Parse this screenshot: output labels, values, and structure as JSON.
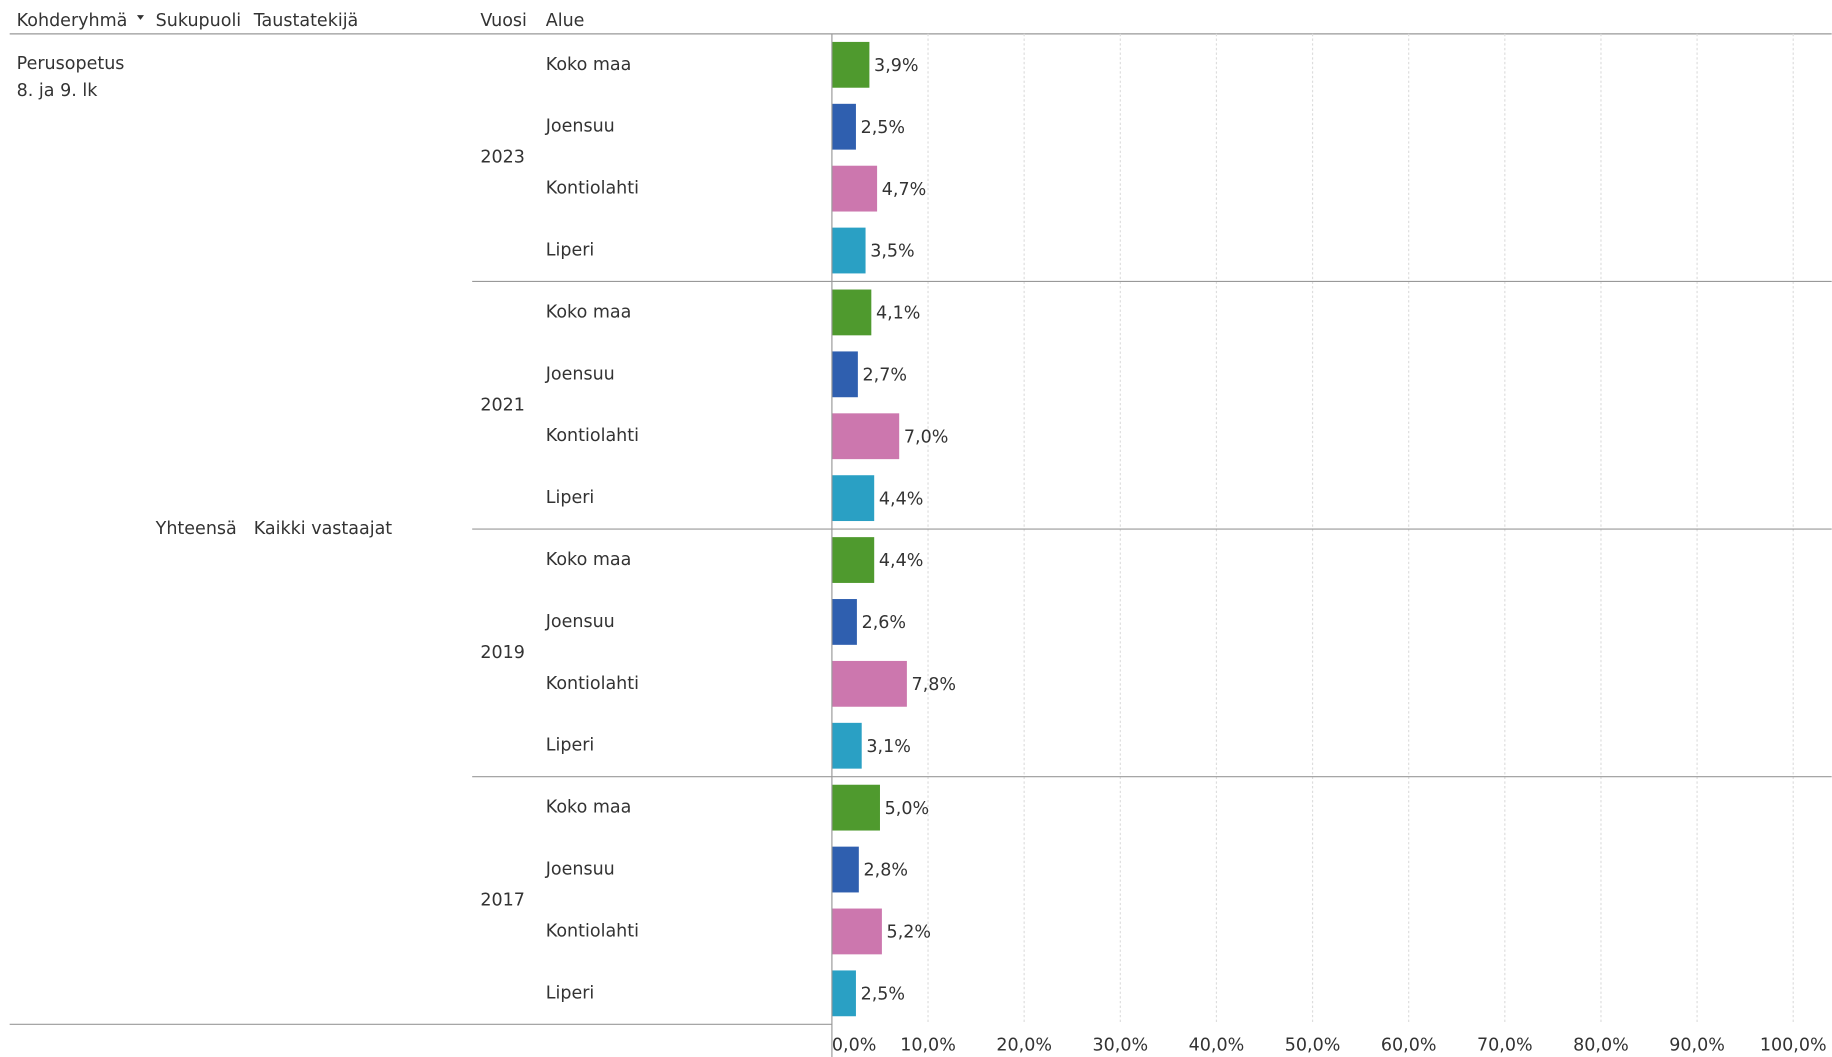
{
  "chart_data": {
    "type": "bar",
    "headers": [
      "Kohderyhmä",
      "Sukupuoli",
      "Taustatekijä",
      "Vuosi",
      "Alue"
    ],
    "group_label": [
      "Perusopetus",
      "8. ja 9. lk"
    ],
    "gender": "Yhteensä",
    "background": "Kaikki vastaajat",
    "categories": [
      "2023",
      "2021",
      "2019",
      "2017"
    ],
    "series": [
      {
        "name": "Koko maa",
        "color": "#4f9a2e",
        "values": [
          3.9,
          4.1,
          4.4,
          5.0
        ],
        "value_labels": [
          "3,9%",
          "4,1%",
          "4,4%",
          "5,0%"
        ]
      },
      {
        "name": "Joensuu",
        "color": "#2f5faf",
        "values": [
          2.5,
          2.7,
          2.6,
          2.8
        ],
        "value_labels": [
          "2,5%",
          "2,7%",
          "2,6%",
          "2,8%"
        ]
      },
      {
        "name": "Kontiolahti",
        "color": "#cc77ae",
        "values": [
          4.7,
          7.0,
          7.8,
          5.2
        ],
        "value_labels": [
          "4,7%",
          "7,0%",
          "7,8%",
          "5,2%"
        ]
      },
      {
        "name": "Liperi",
        "color": "#2aa0c4",
        "values": [
          3.5,
          4.4,
          3.1,
          2.5
        ],
        "value_labels": [
          "3,5%",
          "4,4%",
          "3,1%",
          "2,5%"
        ]
      }
    ],
    "xlim": [
      0,
      104
    ],
    "xticks": [
      {
        "value": 0,
        "label": "0,0%"
      },
      {
        "value": 10,
        "label": "10,0%"
      },
      {
        "value": 20,
        "label": "20,0%"
      },
      {
        "value": 30,
        "label": "30,0%"
      },
      {
        "value": 40,
        "label": "40,0%"
      },
      {
        "value": 50,
        "label": "50,0%"
      },
      {
        "value": 60,
        "label": "60,0%"
      },
      {
        "value": 70,
        "label": "70,0%"
      },
      {
        "value": 80,
        "label": "80,0%"
      },
      {
        "value": 90,
        "label": "90,0%"
      },
      {
        "value": 100,
        "label": "100,0%"
      }
    ],
    "grid": true
  }
}
